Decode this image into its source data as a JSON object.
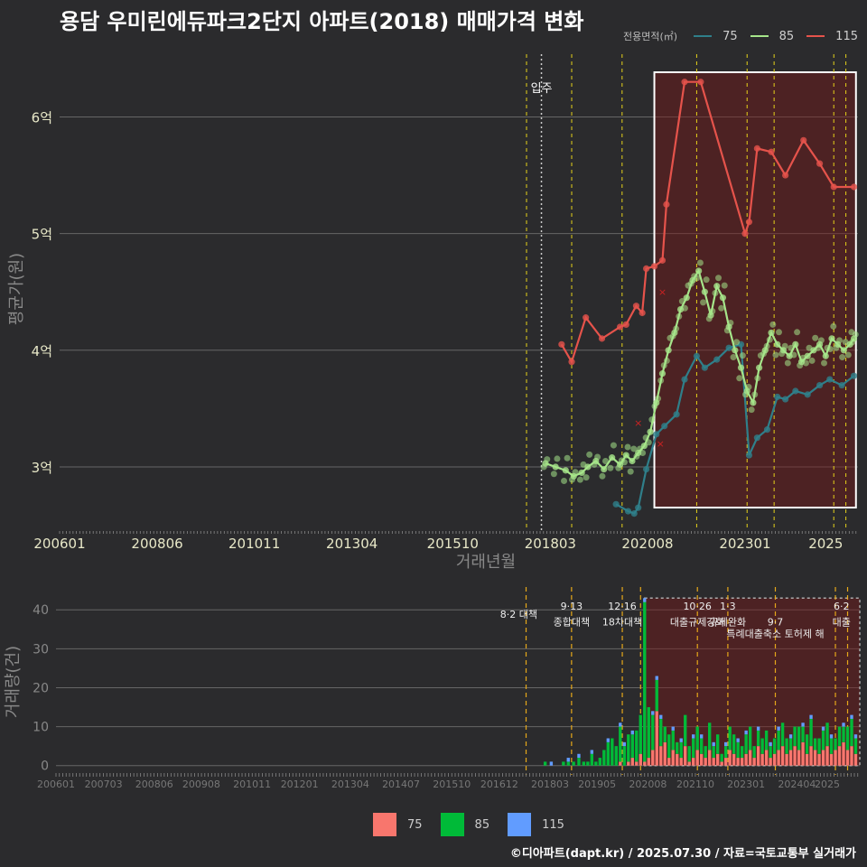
{
  "page": {
    "title": "용담 우미린에듀파크2단지 아파트(2018) 매매가격 변화",
    "footer": "©디아파트(dapt.kr) / 2025.07.30 / 자료=국토교통부 실거래가"
  },
  "legend_top": {
    "title": "전용면적(㎡)",
    "items": [
      {
        "label": "75",
        "color": "#2f7f8a"
      },
      {
        "label": "85",
        "color": "#a6e58a"
      },
      {
        "label": "115",
        "color": "#e5534b"
      }
    ]
  },
  "legend_bottom": {
    "items": [
      {
        "label": "75",
        "color": "#f8766d"
      },
      {
        "label": "85",
        "color": "#00ba38"
      },
      {
        "label": "115",
        "color": "#619cff"
      }
    ]
  },
  "chart_data": [
    {
      "type": "line",
      "title": "용담 우미린에듀파크2단지 아파트(2018) 매매가격 변화",
      "xlabel": "거래년월",
      "ylabel": "평균가(원)",
      "xlim": [
        2006.0,
        2025.8
      ],
      "ylim": [
        2.45,
        6.6
      ],
      "x_ticks": [
        "200601",
        "200806",
        "201011",
        "201304",
        "201510",
        "201803",
        "202008",
        "202301",
        "2025"
      ],
      "x_tick_values": [
        2006.0,
        2008.42,
        2010.83,
        2013.25,
        2015.75,
        2018.17,
        2020.58,
        2023.0,
        2025.0
      ],
      "y_ticks": [
        "3억",
        "4억",
        "5억",
        "6억"
      ],
      "y_tick_values": [
        3,
        4,
        5,
        6
      ],
      "move_in": {
        "label": "입주",
        "x": 2017.95
      },
      "policy_lines": [
        2017.58,
        2018.7,
        2019.95,
        2021.8,
        2023.05,
        2023.72,
        2025.2,
        2025.5
      ],
      "highlight_range": [
        2020.75,
        2025.75
      ],
      "series": [
        {
          "name": "75",
          "color": "#2f7f8a",
          "x": [
            2019.8,
            2020.1,
            2020.25,
            2020.35,
            2020.55,
            2020.8,
            2021.0,
            2021.3,
            2021.5,
            2021.8,
            2022.0,
            2022.3,
            2022.6,
            2022.9,
            2023.1,
            2023.3,
            2023.55,
            2023.8,
            2024.0,
            2024.25,
            2024.55,
            2024.85,
            2025.1,
            2025.4,
            2025.7
          ],
          "y": [
            2.68,
            2.62,
            2.6,
            2.65,
            2.98,
            3.28,
            3.35,
            3.45,
            3.75,
            3.95,
            3.85,
            3.92,
            4.02,
            4.05,
            3.1,
            3.25,
            3.32,
            3.6,
            3.58,
            3.65,
            3.62,
            3.7,
            3.75,
            3.7,
            3.78
          ]
        },
        {
          "name": "85",
          "color": "#a6e58a",
          "x": [
            2018.05,
            2018.3,
            2018.55,
            2018.75,
            2018.95,
            2019.1,
            2019.3,
            2019.5,
            2019.7,
            2019.9,
            2020.05,
            2020.2,
            2020.35,
            2020.5,
            2020.65,
            2020.8,
            2020.95,
            2021.1,
            2021.25,
            2021.4,
            2021.55,
            2021.7,
            2021.85,
            2022.0,
            2022.15,
            2022.3,
            2022.45,
            2022.6,
            2022.75,
            2022.9,
            2023.05,
            2023.2,
            2023.35,
            2023.5,
            2023.65,
            2023.8,
            2023.95,
            2024.1,
            2024.25,
            2024.4,
            2024.55,
            2024.7,
            2024.85,
            2025.0,
            2025.15,
            2025.3,
            2025.45,
            2025.6,
            2025.7
          ],
          "y": [
            3.03,
            3.0,
            2.97,
            2.92,
            2.95,
            3.0,
            3.05,
            2.98,
            3.08,
            3.02,
            3.1,
            3.05,
            3.12,
            3.18,
            3.3,
            3.55,
            3.8,
            4.0,
            4.15,
            4.35,
            4.45,
            4.6,
            4.68,
            4.5,
            4.3,
            4.55,
            4.45,
            4.2,
            4.0,
            3.85,
            3.65,
            3.55,
            3.85,
            4.0,
            4.15,
            4.05,
            4.0,
            3.95,
            4.05,
            3.9,
            3.95,
            4.0,
            4.05,
            3.95,
            4.1,
            4.05,
            4.0,
            4.05,
            4.1
          ]
        },
        {
          "name": "115",
          "color": "#e5534b",
          "x": [
            2018.45,
            2018.7,
            2019.05,
            2019.45,
            2019.9,
            2020.05,
            2020.3,
            2020.45,
            2020.55,
            2020.75,
            2020.95,
            2021.05,
            2021.5,
            2021.9,
            2023.0,
            2023.1,
            2023.3,
            2023.65,
            2024.0,
            2024.45,
            2024.85,
            2025.2,
            2025.7
          ],
          "y": [
            4.05,
            3.9,
            4.28,
            4.1,
            4.2,
            4.22,
            4.38,
            4.32,
            4.7,
            4.72,
            4.77,
            5.25,
            6.3,
            6.3,
            5.0,
            5.1,
            5.73,
            5.7,
            5.5,
            5.8,
            5.6,
            5.4,
            5.4
          ]
        }
      ],
      "cross_marks": {
        "x": [
          2020.35,
          2020.9,
          2020.95
        ],
        "y": [
          3.38,
          3.2,
          4.5
        ]
      }
    },
    {
      "type": "bar",
      "ylabel": "거래량(건)",
      "xlim": [
        2006.0,
        2025.8
      ],
      "ylim": [
        -1,
        44
      ],
      "x_ticks": [
        "200601",
        "200703",
        "200806",
        "200908",
        "201011",
        "201201",
        "201304",
        "201407",
        "201510",
        "201612",
        "201803",
        "201905",
        "202008",
        "202110",
        "202301",
        "202404",
        "2025"
      ],
      "x_tick_values": [
        2006.0,
        2007.17,
        2008.42,
        2009.58,
        2010.83,
        2012.0,
        2013.25,
        2014.5,
        2015.75,
        2016.92,
        2018.17,
        2019.33,
        2020.58,
        2021.75,
        2023.0,
        2024.25,
        2025.0
      ],
      "y_ticks": [
        "0",
        "10",
        "20",
        "30",
        "40"
      ],
      "y_tick_values": [
        0,
        10,
        20,
        30,
        40
      ],
      "policy_lines": [
        2017.58,
        2018.7,
        2019.95,
        2020.4,
        2021.8,
        2022.55,
        2023.72,
        2025.2,
        2025.5
      ],
      "highlight_range": [
        2020.5,
        2025.8
      ],
      "annotations": [
        {
          "x": 2017.4,
          "y": 38,
          "text": "8·2 대책"
        },
        {
          "x": 2018.7,
          "y": 40,
          "text": "9·13"
        },
        {
          "x": 2018.7,
          "y": 36,
          "text": "종합대책"
        },
        {
          "x": 2019.95,
          "y": 40,
          "text": "12·16"
        },
        {
          "x": 2019.95,
          "y": 36,
          "text": "18차대책"
        },
        {
          "x": 2021.8,
          "y": 40,
          "text": "10·26"
        },
        {
          "x": 2021.8,
          "y": 36,
          "text": "대출규제강화"
        },
        {
          "x": 2022.55,
          "y": 40,
          "text": "1·3"
        },
        {
          "x": 2022.55,
          "y": 36,
          "text": "규제완화"
        },
        {
          "x": 2023.72,
          "y": 36,
          "text": "9·7"
        },
        {
          "x": 2023.72,
          "y": 33,
          "text": "특례대출축소 토허제 해"
        },
        {
          "x": 2025.35,
          "y": 40,
          "text": "6·2"
        },
        {
          "x": 2025.35,
          "y": 36,
          "text": "대출"
        }
      ],
      "bar_width_years": 0.075,
      "months": [
        2018.05,
        2018.2,
        2018.35,
        2018.5,
        2018.62,
        2018.75,
        2018.88,
        2019.0,
        2019.1,
        2019.2,
        2019.3,
        2019.4,
        2019.5,
        2019.6,
        2019.7,
        2019.8,
        2019.9,
        2020.0,
        2020.1,
        2020.2,
        2020.3,
        2020.4,
        2020.5,
        2020.6,
        2020.7,
        2020.8,
        2020.9,
        2021.0,
        2021.1,
        2021.2,
        2021.3,
        2021.4,
        2021.5,
        2021.6,
        2021.7,
        2021.8,
        2021.9,
        2022.0,
        2022.1,
        2022.2,
        2022.3,
        2022.4,
        2022.5,
        2022.6,
        2022.7,
        2022.8,
        2022.9,
        2023.0,
        2023.1,
        2023.2,
        2023.3,
        2023.4,
        2023.5,
        2023.6,
        2023.7,
        2023.8,
        2023.9,
        2024.0,
        2024.1,
        2024.2,
        2024.3,
        2024.4,
        2024.5,
        2024.6,
        2024.7,
        2024.8,
        2024.9,
        2025.0,
        2025.1,
        2025.2,
        2025.3,
        2025.4,
        2025.5,
        2025.6,
        2025.7
      ],
      "series": [
        {
          "name": "75",
          "color": "#f8766d",
          "values": [
            0,
            0,
            0,
            0,
            0,
            0,
            0,
            0,
            0,
            0,
            0,
            0,
            0,
            0,
            0,
            0,
            1,
            0,
            1,
            2,
            1,
            3,
            1,
            2,
            4,
            14,
            5,
            6,
            2,
            4,
            3,
            2,
            5,
            1,
            2,
            4,
            3,
            2,
            4,
            2,
            3,
            1,
            2,
            4,
            3,
            2,
            2,
            3,
            4,
            2,
            5,
            3,
            4,
            2,
            3,
            4,
            5,
            3,
            4,
            5,
            4,
            6,
            3,
            5,
            4,
            3,
            4,
            5,
            3,
            4,
            5,
            6,
            4,
            5,
            3
          ]
        },
        {
          "name": "85",
          "color": "#00ba38",
          "values": [
            1,
            0,
            0,
            1,
            1,
            1,
            2,
            1,
            1,
            3,
            1,
            2,
            4,
            6,
            7,
            5,
            9,
            5,
            7,
            6,
            8,
            10,
            41,
            13,
            9,
            8,
            7,
            4,
            6,
            5,
            3,
            4,
            8,
            4,
            5,
            6,
            4,
            3,
            7,
            3,
            5,
            2,
            3,
            6,
            5,
            4,
            3,
            5,
            6,
            3,
            4,
            4,
            5,
            3,
            4,
            5,
            6,
            4,
            3,
            5,
            6,
            4,
            5,
            7,
            3,
            4,
            5,
            6,
            4,
            3,
            5,
            4,
            6,
            7,
            4
          ]
        },
        {
          "name": "115",
          "color": "#619cff",
          "values": [
            0,
            1,
            0,
            0,
            1,
            0,
            1,
            0,
            0,
            1,
            0,
            0,
            0,
            1,
            0,
            0,
            1,
            1,
            0,
            1,
            0,
            0,
            1,
            0,
            1,
            1,
            1,
            0,
            0,
            1,
            0,
            1,
            0,
            0,
            1,
            0,
            1,
            0,
            0,
            1,
            0,
            0,
            1,
            0,
            0,
            1,
            0,
            1,
            0,
            0,
            1,
            0,
            0,
            1,
            0,
            1,
            0,
            0,
            1,
            0,
            0,
            1,
            0,
            1,
            0,
            0,
            1,
            0,
            1,
            0,
            0,
            1,
            0,
            1,
            1
          ]
        }
      ]
    }
  ]
}
